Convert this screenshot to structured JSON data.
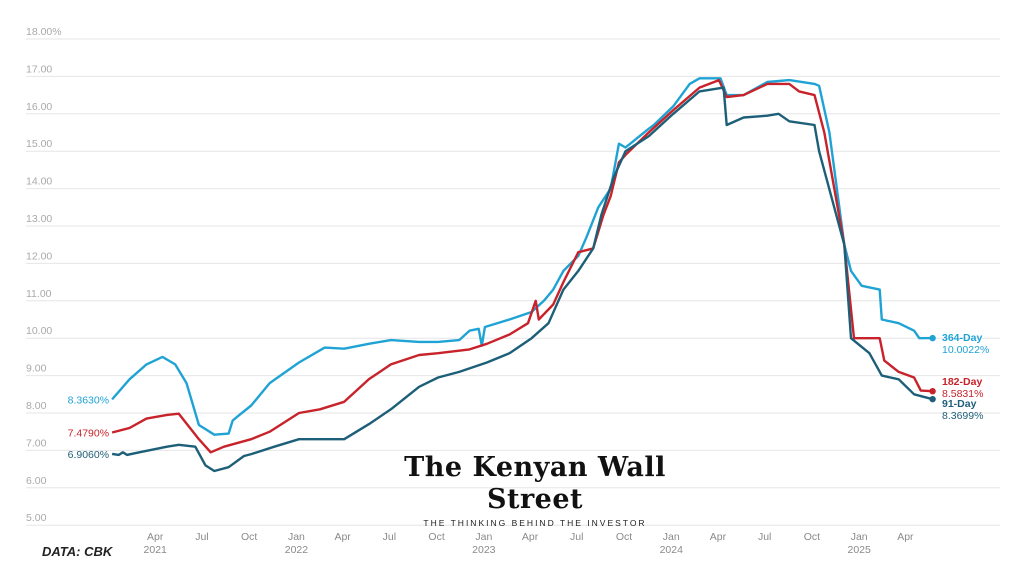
{
  "chart_data": {
    "type": "line",
    "title": "",
    "xlabel": "",
    "ylabel": "",
    "ylim": [
      5,
      18
    ],
    "y_ticks": [
      "18.00%",
      "17.00",
      "16.00",
      "15.00",
      "14.00",
      "13.00",
      "12.00",
      "11.00",
      "10.00",
      "9.00",
      "8.00",
      "7.00",
      "6.00",
      "5.00"
    ],
    "y_tick_values": [
      18,
      17,
      16,
      15,
      14,
      13,
      12,
      11,
      10,
      9,
      8,
      7,
      6,
      5
    ],
    "x_ticks": [
      {
        "date": "2021-04-01",
        "label": "Apr",
        "year": "2021"
      },
      {
        "date": "2021-07-01",
        "label": "Jul",
        "year": ""
      },
      {
        "date": "2021-10-01",
        "label": "Oct",
        "year": ""
      },
      {
        "date": "2022-01-01",
        "label": "Jan",
        "year": "2022"
      },
      {
        "date": "2022-04-01",
        "label": "Apr",
        "year": ""
      },
      {
        "date": "2022-07-01",
        "label": "Jul",
        "year": ""
      },
      {
        "date": "2022-10-01",
        "label": "Oct",
        "year": ""
      },
      {
        "date": "2023-01-01",
        "label": "Jan",
        "year": "2023"
      },
      {
        "date": "2023-04-01",
        "label": "Apr",
        "year": ""
      },
      {
        "date": "2023-07-01",
        "label": "Jul",
        "year": ""
      },
      {
        "date": "2023-10-01",
        "label": "Oct",
        "year": ""
      },
      {
        "date": "2024-01-01",
        "label": "Jan",
        "year": "2024"
      },
      {
        "date": "2024-04-01",
        "label": "Apr",
        "year": ""
      },
      {
        "date": "2024-07-01",
        "label": "Jul",
        "year": ""
      },
      {
        "date": "2024-10-01",
        "label": "Oct",
        "year": ""
      },
      {
        "date": "2025-01-01",
        "label": "Jan",
        "year": "2025"
      },
      {
        "date": "2025-04-01",
        "label": "Apr",
        "year": ""
      }
    ],
    "grid": true,
    "legend": "direct labels at line ends",
    "series": [
      {
        "name": "364-Day",
        "color": "#1fa3d5",
        "start_label": "8.3630%",
        "end_label": "10.0022%",
        "points": [
          [
            "2021-01-07",
            8.363
          ],
          [
            "2021-02-10",
            8.9
          ],
          [
            "2021-03-15",
            9.3
          ],
          [
            "2021-04-15",
            9.5
          ],
          [
            "2021-05-10",
            9.3
          ],
          [
            "2021-06-01",
            8.8
          ],
          [
            "2021-06-25",
            7.68
          ],
          [
            "2021-07-25",
            7.42
          ],
          [
            "2021-08-22",
            7.45
          ],
          [
            "2021-08-30",
            7.8
          ],
          [
            "2021-09-12",
            7.95
          ],
          [
            "2021-10-05",
            8.2
          ],
          [
            "2021-11-10",
            8.8
          ],
          [
            "2022-01-06",
            9.35
          ],
          [
            "2022-02-25",
            9.75
          ],
          [
            "2022-04-04",
            9.72
          ],
          [
            "2022-05-22",
            9.85
          ],
          [
            "2022-07-04",
            9.95
          ],
          [
            "2022-08-28",
            9.9
          ],
          [
            "2022-10-04",
            9.9
          ],
          [
            "2022-11-14",
            9.95
          ],
          [
            "2022-12-04",
            10.2
          ],
          [
            "2022-12-22",
            10.25
          ],
          [
            "2022-12-28",
            9.8
          ],
          [
            "2023-01-03",
            10.3
          ],
          [
            "2023-02-20",
            10.5
          ],
          [
            "2023-04-04",
            10.7
          ],
          [
            "2023-04-28",
            11.0
          ],
          [
            "2023-05-16",
            11.3
          ],
          [
            "2023-06-05",
            11.8
          ],
          [
            "2023-07-04",
            12.2
          ],
          [
            "2023-07-20",
            12.7
          ],
          [
            "2023-08-12",
            13.5
          ],
          [
            "2023-09-05",
            14.0
          ],
          [
            "2023-09-21",
            15.2
          ],
          [
            "2023-10-04",
            15.1
          ],
          [
            "2023-11-18",
            15.6
          ],
          [
            "2023-11-28",
            15.7
          ],
          [
            "2024-01-05",
            16.2
          ],
          [
            "2024-02-06",
            16.8
          ],
          [
            "2024-02-25",
            16.95
          ],
          [
            "2024-04-06",
            16.95
          ],
          [
            "2024-04-18",
            16.5
          ],
          [
            "2024-05-21",
            16.5
          ],
          [
            "2024-07-06",
            16.85
          ],
          [
            "2024-08-18",
            16.9
          ],
          [
            "2024-10-06",
            16.8
          ],
          [
            "2024-10-15",
            16.75
          ],
          [
            "2024-11-04",
            15.5
          ],
          [
            "2024-12-03",
            12.5
          ],
          [
            "2024-12-16",
            11.8
          ],
          [
            "2025-01-06",
            11.4
          ],
          [
            "2025-02-10",
            11.3
          ],
          [
            "2025-02-14",
            10.5
          ],
          [
            "2025-03-19",
            10.4
          ],
          [
            "2025-04-18",
            10.2
          ],
          [
            "2025-04-28",
            10.0
          ],
          [
            "2025-05-24",
            10.0022
          ]
        ]
      },
      {
        "name": "182-Day",
        "color": "#c8222a",
        "start_label": "7.4790%",
        "end_label": "8.5831%",
        "points": [
          [
            "2021-01-07",
            7.479
          ],
          [
            "2021-02-10",
            7.6
          ],
          [
            "2021-03-15",
            7.85
          ],
          [
            "2021-04-24",
            7.95
          ],
          [
            "2021-05-17",
            7.98
          ],
          [
            "2021-06-25",
            7.3
          ],
          [
            "2021-07-18",
            6.95
          ],
          [
            "2021-08-13",
            7.1
          ],
          [
            "2021-10-05",
            7.3
          ],
          [
            "2021-11-10",
            7.5
          ],
          [
            "2022-01-06",
            8.0
          ],
          [
            "2022-02-16",
            8.1
          ],
          [
            "2022-04-04",
            8.3
          ],
          [
            "2022-05-22",
            8.9
          ],
          [
            "2022-07-04",
            9.3
          ],
          [
            "2022-08-28",
            9.55
          ],
          [
            "2022-10-04",
            9.6
          ],
          [
            "2022-12-04",
            9.7
          ],
          [
            "2023-01-07",
            9.85
          ],
          [
            "2023-02-20",
            10.1
          ],
          [
            "2023-03-28",
            10.4
          ],
          [
            "2023-04-12",
            11.0
          ],
          [
            "2023-04-18",
            10.5
          ],
          [
            "2023-05-16",
            10.9
          ],
          [
            "2023-06-05",
            11.5
          ],
          [
            "2023-07-04",
            12.3
          ],
          [
            "2023-08-02",
            12.4
          ],
          [
            "2023-08-22",
            13.3
          ],
          [
            "2023-09-05",
            13.8
          ],
          [
            "2023-09-21",
            14.7
          ],
          [
            "2023-10-04",
            14.9
          ],
          [
            "2023-11-18",
            15.5
          ],
          [
            "2024-01-05",
            16.1
          ],
          [
            "2024-02-25",
            16.7
          ],
          [
            "2024-04-03",
            16.9
          ],
          [
            "2024-04-18",
            16.45
          ],
          [
            "2024-05-21",
            16.5
          ],
          [
            "2024-07-06",
            16.8
          ],
          [
            "2024-08-18",
            16.8
          ],
          [
            "2024-09-06",
            16.6
          ],
          [
            "2024-10-06",
            16.5
          ],
          [
            "2024-10-25",
            15.5
          ],
          [
            "2024-12-03",
            12.5
          ],
          [
            "2024-12-22",
            10.0
          ],
          [
            "2025-02-10",
            10.0
          ],
          [
            "2025-02-19",
            9.4
          ],
          [
            "2025-03-19",
            9.1
          ],
          [
            "2025-04-18",
            8.95
          ],
          [
            "2025-05-01",
            8.6
          ],
          [
            "2025-05-24",
            8.5831
          ]
        ]
      },
      {
        "name": "91-Day",
        "color": "#1d5f78",
        "start_label": "6.9060%",
        "end_label": "8.3699%",
        "points": [
          [
            "2021-01-07",
            6.906
          ],
          [
            "2021-01-20",
            6.88
          ],
          [
            "2021-01-28",
            6.95
          ],
          [
            "2021-02-05",
            6.88
          ],
          [
            "2021-03-01",
            6.95
          ],
          [
            "2021-04-24",
            7.1
          ],
          [
            "2021-05-17",
            7.15
          ],
          [
            "2021-06-18",
            7.1
          ],
          [
            "2021-07-08",
            6.6
          ],
          [
            "2021-07-25",
            6.45
          ],
          [
            "2021-08-22",
            6.55
          ],
          [
            "2021-09-21",
            6.85
          ],
          [
            "2021-10-05",
            6.9
          ],
          [
            "2021-11-19",
            7.1
          ],
          [
            "2022-01-06",
            7.3
          ],
          [
            "2022-02-16",
            7.3
          ],
          [
            "2022-04-04",
            7.3
          ],
          [
            "2022-05-22",
            7.7
          ],
          [
            "2022-07-04",
            8.1
          ],
          [
            "2022-08-28",
            8.7
          ],
          [
            "2022-10-04",
            8.95
          ],
          [
            "2022-11-14",
            9.1
          ],
          [
            "2023-01-07",
            9.35
          ],
          [
            "2023-02-20",
            9.6
          ],
          [
            "2023-04-04",
            10.0
          ],
          [
            "2023-05-07",
            10.4
          ],
          [
            "2023-06-05",
            11.3
          ],
          [
            "2023-07-04",
            11.8
          ],
          [
            "2023-08-02",
            12.4
          ],
          [
            "2023-08-18",
            13.3
          ],
          [
            "2023-09-11",
            14.3
          ],
          [
            "2023-10-04",
            15.0
          ],
          [
            "2023-11-18",
            15.4
          ],
          [
            "2024-01-05",
            16.0
          ],
          [
            "2024-02-25",
            16.6
          ],
          [
            "2024-04-12",
            16.7
          ],
          [
            "2024-04-18",
            15.7
          ],
          [
            "2024-05-21",
            15.9
          ],
          [
            "2024-07-06",
            15.95
          ],
          [
            "2024-07-28",
            16.0
          ],
          [
            "2024-08-18",
            15.8
          ],
          [
            "2024-10-06",
            15.7
          ],
          [
            "2024-10-15",
            15.0
          ],
          [
            "2024-12-03",
            12.5
          ],
          [
            "2024-12-16",
            10.0
          ],
          [
            "2025-01-21",
            9.6
          ],
          [
            "2025-02-14",
            9.0
          ],
          [
            "2025-03-19",
            8.9
          ],
          [
            "2025-04-18",
            8.5
          ],
          [
            "2025-05-24",
            8.3699
          ]
        ]
      }
    ]
  },
  "source": "DATA: CBK",
  "logo": {
    "title": "The Kenyan Wall Street",
    "tagline": "THE THINKING BEHIND THE INVESTOR"
  }
}
